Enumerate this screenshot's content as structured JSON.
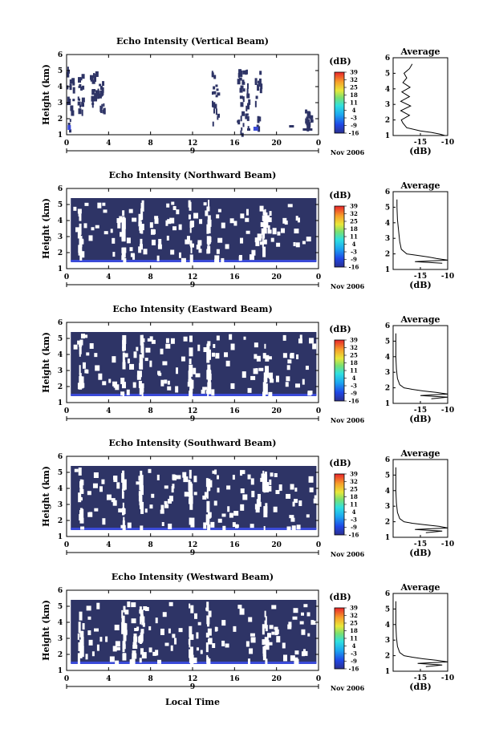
{
  "figure": {
    "xlabel": "Local Time",
    "date_label": "Nov 2006",
    "day_label": "9",
    "colorbar_unit": "(dB)",
    "colorbar_ticks": [
      "-16",
      "-9",
      "-3",
      "4",
      "11",
      "18",
      "25",
      "32",
      "39"
    ],
    "avg_title": "Average",
    "avg_xlabel": "(dB)",
    "colors": {
      "background": "#2e3466",
      "strong": "#3a4ad8",
      "noise_edge": "#5a70ee"
    }
  },
  "chart_data": [
    {
      "type": "heatmap",
      "title": "Echo Intensity (Vertical Beam)",
      "xlabel": "",
      "ylabel": "Height (km)",
      "xlim": [
        0,
        24
      ],
      "ylim": [
        1,
        6
      ],
      "xticks": [
        "0",
        "4",
        "8",
        "12",
        "16",
        "20",
        "0"
      ],
      "yticks": [
        "1",
        "2",
        "3",
        "4",
        "5",
        "6"
      ],
      "colorbar": {
        "range": [
          -16,
          39
        ],
        "ticks": [
          "-16",
          "-9",
          "-3",
          "4",
          "11",
          "18",
          "25",
          "32",
          "39"
        ]
      },
      "fill": "sparse",
      "average_profile": {
        "xlim": [
          -20,
          -10
        ],
        "xticks": [
          "-15",
          "-10"
        ],
        "ylim": [
          1,
          6
        ],
        "height_km": [
          1.0,
          1.1,
          1.2,
          1.3,
          1.5,
          1.8,
          2.0,
          2.3,
          2.6,
          2.9,
          3.2,
          3.5,
          3.8,
          4.1,
          4.4,
          4.7,
          5.0,
          5.3,
          5.6
        ],
        "db": [
          -10.5,
          -11.5,
          -13,
          -15,
          -17.5,
          -18.2,
          -18.5,
          -17,
          -18.6,
          -16.8,
          -18.6,
          -17,
          -18.4,
          -16.9,
          -18.2,
          -17.5,
          -18.0,
          -17.0,
          -16.5
        ]
      }
    },
    {
      "type": "heatmap",
      "title": "Echo Intensity (Northward Beam)",
      "xlabel": "",
      "ylabel": "Height (km)",
      "xlim": [
        0,
        24
      ],
      "ylim": [
        1,
        6
      ],
      "xticks": [
        "0",
        "4",
        "8",
        "12",
        "16",
        "20",
        "0"
      ],
      "yticks": [
        "1",
        "2",
        "3",
        "4",
        "5",
        "6"
      ],
      "colorbar": {
        "range": [
          -16,
          39
        ],
        "ticks": [
          "-16",
          "-9",
          "-3",
          "4",
          "11",
          "18",
          "25",
          "32",
          "39"
        ]
      },
      "fill": "dense",
      "average_profile": {
        "xlim": [
          -20,
          -10
        ],
        "xticks": [
          "-15",
          "-10"
        ],
        "ylim": [
          1,
          6
        ],
        "height_km": [
          1.4,
          1.5,
          1.6,
          1.7,
          1.8,
          1.9,
          2.0,
          2.3,
          2.8,
          3.5,
          4.2,
          5.0,
          5.5
        ],
        "db": [
          -11,
          -16,
          -9.5,
          -12,
          -13.5,
          -15.5,
          -17.5,
          -18.5,
          -18.8,
          -19,
          -19.2,
          -19.3,
          -19.3
        ]
      }
    },
    {
      "type": "heatmap",
      "title": "Echo Intensity (Eastward Beam)",
      "xlabel": "",
      "ylabel": "Height (km)",
      "xlim": [
        0,
        24
      ],
      "ylim": [
        1,
        6
      ],
      "xticks": [
        "0",
        "4",
        "8",
        "12",
        "16",
        "20",
        "0"
      ],
      "yticks": [
        "1",
        "2",
        "3",
        "4",
        "5",
        "6"
      ],
      "colorbar": {
        "range": [
          -16,
          39
        ],
        "ticks": [
          "-16",
          "-9",
          "-3",
          "4",
          "11",
          "18",
          "25",
          "32",
          "39"
        ]
      },
      "fill": "dense",
      "average_profile": {
        "xlim": [
          -20,
          -10
        ],
        "xticks": [
          "-15",
          "-10"
        ],
        "ylim": [
          1,
          6
        ],
        "height_km": [
          1.3,
          1.4,
          1.5,
          1.6,
          1.7,
          1.8,
          1.9,
          2.0,
          2.2,
          2.6,
          3.2,
          4.0,
          4.8,
          5.5
        ],
        "db": [
          -13,
          -10,
          -15,
          -9.5,
          -12,
          -14.5,
          -16.5,
          -18,
          -18.8,
          -19.2,
          -19.4,
          -19.5,
          -19.5,
          -19.5
        ]
      }
    },
    {
      "type": "heatmap",
      "title": "Echo Intensity (Southward Beam)",
      "xlabel": "",
      "ylabel": "Height (km)",
      "xlim": [
        0,
        24
      ],
      "ylim": [
        1,
        6
      ],
      "xticks": [
        "0",
        "4",
        "8",
        "12",
        "16",
        "20",
        "0"
      ],
      "yticks": [
        "1",
        "2",
        "3",
        "4",
        "5",
        "6"
      ],
      "colorbar": {
        "range": [
          -16,
          39
        ],
        "ticks": [
          "-16",
          "-9",
          "-3",
          "4",
          "11",
          "18",
          "25",
          "32",
          "39"
        ]
      },
      "fill": "dense",
      "average_profile": {
        "xlim": [
          -20,
          -10
        ],
        "xticks": [
          "-15",
          "-10"
        ],
        "ylim": [
          1,
          6
        ],
        "height_km": [
          1.3,
          1.4,
          1.5,
          1.6,
          1.7,
          1.8,
          1.9,
          2.0,
          2.2,
          2.6,
          3.2,
          4.0,
          4.8,
          5.5
        ],
        "db": [
          -14,
          -11,
          -16,
          -9.5,
          -11.5,
          -14,
          -16.5,
          -18,
          -18.8,
          -19.2,
          -19.4,
          -19.5,
          -19.5,
          -19.5
        ]
      }
    },
    {
      "type": "heatmap",
      "title": "Echo Intensity (Westward Beam)",
      "xlabel": "Local Time",
      "ylabel": "Height (km)",
      "xlim": [
        0,
        24
      ],
      "ylim": [
        1,
        6
      ],
      "xticks": [
        "0",
        "4",
        "8",
        "12",
        "16",
        "20",
        "0"
      ],
      "yticks": [
        "1",
        "2",
        "3",
        "4",
        "5",
        "6"
      ],
      "colorbar": {
        "range": [
          -16,
          39
        ],
        "ticks": [
          "-16",
          "-9",
          "-3",
          "4",
          "11",
          "18",
          "25",
          "32",
          "39"
        ]
      },
      "fill": "dense",
      "average_profile": {
        "xlim": [
          -20,
          -10
        ],
        "xticks": [
          "-15",
          "-10"
        ],
        "ylim": [
          1,
          6
        ],
        "height_km": [
          1.3,
          1.4,
          1.5,
          1.6,
          1.7,
          1.8,
          1.9,
          2.0,
          2.2,
          2.6,
          3.2,
          4.0,
          4.8,
          5.5
        ],
        "db": [
          -14,
          -11,
          -15.5,
          -9.5,
          -12,
          -14.5,
          -16.5,
          -18,
          -18.8,
          -19.2,
          -19.4,
          -19.5,
          -19.5,
          -19.5
        ]
      }
    }
  ]
}
